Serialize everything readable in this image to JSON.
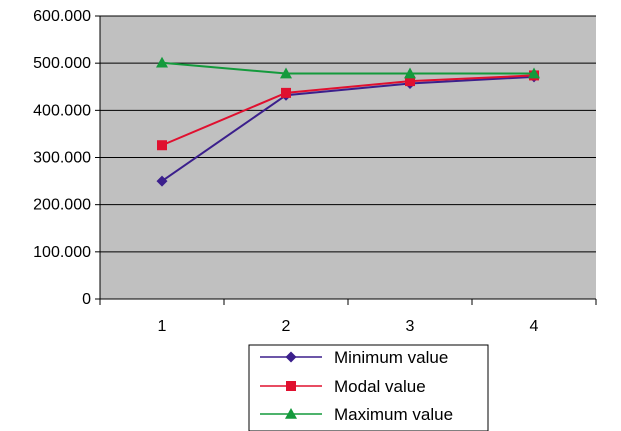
{
  "chart_data": {
    "type": "line",
    "title": "",
    "xlabel": "",
    "ylabel": "",
    "x": [
      1,
      2,
      3,
      4
    ],
    "x_tick_labels": [
      "1",
      "2",
      "3",
      "4"
    ],
    "ylim": [
      0,
      600
    ],
    "y_ticks": [
      0,
      100,
      200,
      300,
      400,
      500,
      600
    ],
    "y_tick_labels": [
      "0",
      "100.000",
      "200.000",
      "300.000",
      "400.000",
      "500.000",
      "600.000"
    ],
    "grid": "horizontal major gridlines",
    "plot_background": "#c0c0c0",
    "legend_position": "bottom",
    "series": [
      {
        "name": "Minimum value",
        "values": [
          250,
          432,
          457,
          471
        ],
        "color": "#3b1f8c",
        "marker": "diamond"
      },
      {
        "name": "Modal value",
        "values": [
          326,
          437,
          462,
          474
        ],
        "color": "#e0102f",
        "marker": "square"
      },
      {
        "name": "Maximum value",
        "values": [
          501,
          478,
          478,
          478
        ],
        "color": "#149a3c",
        "marker": "triangle"
      }
    ]
  }
}
